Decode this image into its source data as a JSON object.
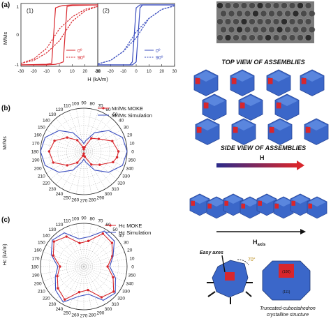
{
  "panel_labels": {
    "a": "(a)",
    "b": "(b)",
    "c": "(c)"
  },
  "panel_a": {
    "ylabel": "M/Ms",
    "xlabel": "H (kA/m)",
    "xticks": [
      "-30",
      "-20",
      "-10",
      "0",
      "10",
      "20",
      "30"
    ],
    "yticks": [
      "1",
      "0",
      "-1"
    ],
    "sub1_label": "(1)",
    "sub2_label": "(2)",
    "legend1": [
      "0º",
      "90º"
    ],
    "legend2": [
      "0º",
      "90º"
    ]
  },
  "panel_b": {
    "ylabel": "Mr/Ms",
    "legend": [
      "Mr/Ms MOKE",
      "Mr/Ms Simulation"
    ]
  },
  "panel_c": {
    "ylabel": "Hc (kA/m)",
    "legend": [
      "Hc MOKE",
      "Hc Simulation"
    ]
  },
  "polar_angles": [
    "0",
    "10",
    "20",
    "30",
    "40",
    "50",
    "60",
    "70",
    "80",
    "90",
    "100",
    "110",
    "120",
    "130",
    "140",
    "150",
    "160",
    "170",
    "180",
    "190",
    "200",
    "210",
    "220",
    "230",
    "240",
    "250",
    "260",
    "270",
    "280",
    "290",
    "300",
    "310",
    "320",
    "330",
    "340",
    "350"
  ],
  "right": {
    "top_view_title": "TOP VIEW  OF ASSEMBLIES",
    "side_view_title": "SIDE VIEW OF ASSEMBLIES",
    "h_label": "H",
    "h_axis_label": "H",
    "h_axis_sub": "axis",
    "easy_axes_label": "Easy axes",
    "angle_label": "70°",
    "face_100": "(100)",
    "face_111": "(111)",
    "caption_line1": "Truncated-cuboctahedron",
    "caption_line2": "crystalline structure"
  },
  "colors": {
    "red": "#d8262c",
    "blue": "#3a4dbf",
    "cube": "#3b67c9",
    "cube_dark": "#28479a",
    "cube_light": "#5a86de"
  },
  "chart_data": [
    {
      "type": "line",
      "title": "",
      "xlabel": "H (kA/m)",
      "ylabel": "M/Ms",
      "xlim": [
        -30,
        30
      ],
      "ylim": [
        -1,
        1
      ],
      "series": [
        {
          "name": "0º",
          "x": [
            -30,
            -10,
            -6,
            -3,
            0,
            3,
            6,
            10,
            30
          ],
          "y": [
            -1,
            -0.98,
            -0.95,
            0.9,
            0.95,
            0.98,
            0.99,
            1,
            1
          ]
        },
        {
          "name": "90º",
          "x": [
            -30,
            -20,
            -10,
            0,
            10,
            20,
            30
          ],
          "y": [
            -0.95,
            -0.8,
            -0.45,
            0.2,
            0.6,
            0.85,
            0.95
          ]
        }
      ]
    },
    {
      "type": "line",
      "title": "",
      "xlabel": "H (kA/m)",
      "ylabel": "M/Ms",
      "xlim": [
        -30,
        30
      ],
      "ylim": [
        -1,
        1
      ],
      "series": [
        {
          "name": "0º",
          "x": [
            -30,
            -5,
            -3,
            0,
            3,
            5,
            30
          ],
          "y": [
            -1,
            -1,
            -0.9,
            0.9,
            1,
            1,
            1
          ]
        },
        {
          "name": "90º",
          "x": [
            -30,
            -20,
            -10,
            0,
            10,
            20,
            30
          ],
          "y": [
            -0.97,
            -0.85,
            -0.55,
            0.1,
            0.55,
            0.85,
            0.97
          ]
        }
      ]
    },
    {
      "type": "scatter",
      "title": "",
      "ylabel": "Mr/Ms",
      "theta_unit": "deg",
      "series": [
        {
          "name": "Mr/Ms MOKE",
          "theta": [
            0,
            20,
            40,
            60,
            80,
            90,
            100,
            120,
            140,
            160,
            180,
            200,
            220,
            240,
            260,
            270,
            280,
            300,
            320,
            340,
            350
          ],
          "r": [
            0.8,
            0.7,
            0.45,
            0.35,
            0.1,
            0.05,
            0.1,
            0.3,
            0.5,
            0.72,
            0.8,
            0.75,
            0.5,
            0.3,
            0.1,
            0.05,
            0.12,
            0.35,
            0.48,
            0.72,
            0.78
          ]
        },
        {
          "name": "Mr/Ms Simulation",
          "theta": [
            0,
            20,
            40,
            60,
            80,
            90,
            100,
            120,
            140,
            160,
            180,
            200,
            220,
            240,
            260,
            270,
            280,
            300,
            320,
            340,
            360
          ],
          "r": [
            1.0,
            0.95,
            0.75,
            0.5,
            0.25,
            0.18,
            0.25,
            0.5,
            0.75,
            0.95,
            1.0,
            0.95,
            0.75,
            0.5,
            0.25,
            0.18,
            0.25,
            0.5,
            0.75,
            0.95,
            1.0
          ]
        }
      ]
    },
    {
      "type": "scatter",
      "title": "",
      "ylabel": "Hc (kA/m)",
      "theta_unit": "deg",
      "series": [
        {
          "name": "Hc MOKE",
          "theta": [
            0,
            20,
            40,
            60,
            80,
            100,
            120,
            140,
            160,
            180,
            200,
            220,
            240,
            260,
            280,
            300,
            320,
            340
          ],
          "r": [
            0.55,
            0.7,
            0.85,
            0.88,
            0.6,
            0.55,
            0.8,
            0.9,
            0.75,
            0.55,
            0.65,
            0.78,
            0.88,
            0.6,
            0.55,
            0.82,
            0.9,
            0.72
          ]
        },
        {
          "name": "Hc Simulation",
          "theta": [
            0,
            20,
            40,
            60,
            80,
            100,
            120,
            140,
            160,
            180,
            200,
            220,
            240,
            260,
            280,
            300,
            320,
            340
          ],
          "r": [
            0.6,
            0.72,
            0.92,
            0.95,
            0.7,
            0.65,
            0.9,
            0.95,
            0.8,
            0.6,
            0.7,
            0.85,
            0.95,
            0.7,
            0.65,
            0.9,
            0.95,
            0.78
          ]
        }
      ]
    }
  ]
}
